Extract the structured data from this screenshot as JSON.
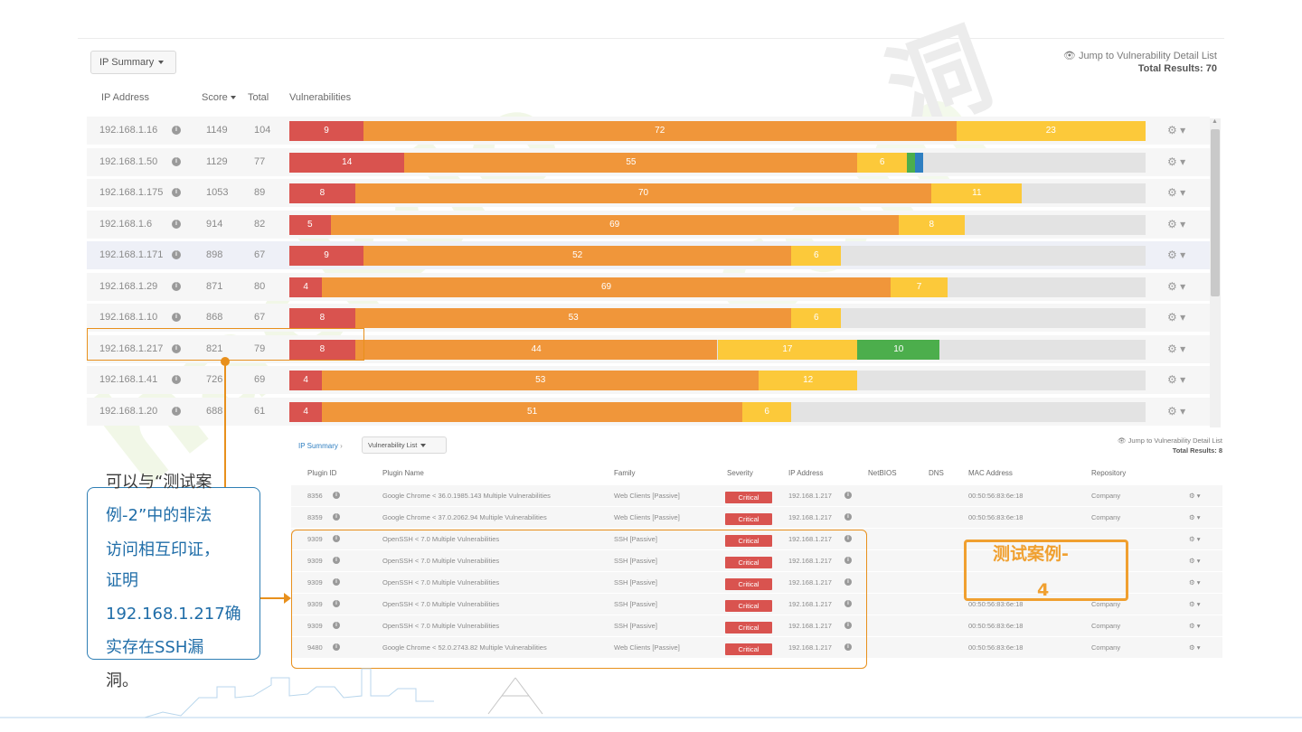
{
  "top": {
    "view_select": "IP Summary",
    "jump_link": "Jump to Vulnerability Detail List",
    "total_results": "Total Results: 70"
  },
  "ip_table": {
    "headers": {
      "ip": "IP Address",
      "score": "Score",
      "total": "Total",
      "vulns": "Vulnerabilities"
    },
    "rows": [
      {
        "ip": "192.168.1.16",
        "score": "1149",
        "total": "104",
        "segments": [
          9,
          72,
          23,
          0,
          0
        ]
      },
      {
        "ip": "192.168.1.50",
        "score": "1129",
        "total": "77",
        "segments": [
          14,
          55,
          6,
          1,
          1
        ]
      },
      {
        "ip": "192.168.1.175",
        "score": "1053",
        "total": "89",
        "segments": [
          8,
          70,
          11,
          0,
          0
        ]
      },
      {
        "ip": "192.168.1.6",
        "score": "914",
        "total": "82",
        "segments": [
          5,
          69,
          8,
          0,
          0
        ]
      },
      {
        "ip": "192.168.1.171",
        "score": "898",
        "total": "67",
        "segments": [
          9,
          52,
          6,
          0,
          0
        ]
      },
      {
        "ip": "192.168.1.29",
        "score": "871",
        "total": "80",
        "segments": [
          4,
          69,
          7,
          0,
          0
        ]
      },
      {
        "ip": "192.168.1.10",
        "score": "868",
        "total": "67",
        "segments": [
          8,
          53,
          6,
          0,
          0
        ]
      },
      {
        "ip": "192.168.1.217",
        "score": "821",
        "total": "79",
        "segments": [
          8,
          44,
          17,
          10,
          0
        ]
      },
      {
        "ip": "192.168.1.41",
        "score": "726",
        "total": "69",
        "segments": [
          4,
          53,
          12,
          0,
          0
        ]
      },
      {
        "ip": "192.168.1.20",
        "score": "688",
        "total": "61",
        "segments": [
          4,
          51,
          6,
          0,
          0
        ]
      }
    ]
  },
  "colors": {
    "critical": "#d9534f",
    "high": "#f0963a",
    "medium": "#fcc93a",
    "low": "#4cae4c",
    "info": "#2f7fc1"
  },
  "detail": {
    "breadcrumb": "IP Summary",
    "sep": "›",
    "view_select": "Vulnerability List",
    "jump_link": "Jump to Vulnerability Detail List",
    "total_results": "Total Results: 8",
    "headers": [
      "Plugin ID",
      "Plugin Name",
      "Family",
      "Severity",
      "IP Address",
      "NetBIOS",
      "DNS",
      "MAC Address",
      "Repository"
    ],
    "rows": [
      {
        "id": "8356",
        "name": "Google Chrome < 36.0.1985.143 Multiple Vulnerabilities",
        "family": "Web Clients [Passive]",
        "severity": "Critical",
        "ip": "192.168.1.217",
        "mac": "00:50:56:83:6e:18",
        "repo": "Company"
      },
      {
        "id": "8359",
        "name": "Google Chrome < 37.0.2062.94 Multiple Vulnerabilities",
        "family": "Web Clients [Passive]",
        "severity": "Critical",
        "ip": "192.168.1.217",
        "mac": "00:50:56:83:6e:18",
        "repo": "Company"
      },
      {
        "id": "9309",
        "name": "OpenSSH < 7.0 Multiple Vulnerabilities",
        "family": "SSH [Passive]",
        "severity": "Critical",
        "ip": "192.168.1.217",
        "mac": "",
        "repo": ""
      },
      {
        "id": "9309",
        "name": "OpenSSH < 7.0 Multiple Vulnerabilities",
        "family": "SSH [Passive]",
        "severity": "Critical",
        "ip": "192.168.1.217",
        "mac": "",
        "repo": ""
      },
      {
        "id": "9309",
        "name": "OpenSSH < 7.0 Multiple Vulnerabilities",
        "family": "SSH [Passive]",
        "severity": "Critical",
        "ip": "192.168.1.217",
        "mac": "",
        "repo": ""
      },
      {
        "id": "9309",
        "name": "OpenSSH < 7.0 Multiple Vulnerabilities",
        "family": "SSH [Passive]",
        "severity": "Critical",
        "ip": "192.168.1.217",
        "mac": "00:50:56:83:6e:18",
        "repo": "Company"
      },
      {
        "id": "9309",
        "name": "OpenSSH < 7.0 Multiple Vulnerabilities",
        "family": "SSH [Passive]",
        "severity": "Critical",
        "ip": "192.168.1.217",
        "mac": "00:50:56:83:6e:18",
        "repo": "Company"
      },
      {
        "id": "9480",
        "name": "Google Chrome < 52.0.2743.82 Multiple Vulnerabilities",
        "family": "Web Clients [Passive]",
        "severity": "Critical",
        "ip": "192.168.1.217",
        "mac": "00:50:56:83:6e:18",
        "repo": "Company"
      }
    ]
  },
  "annotations": {
    "case_label_line1": "测试案例-",
    "case_label_line2": "4",
    "note_lines": [
      "可以与“测试案",
      "例-2”中的非法",
      "访问相互印证，",
      "证明",
      "192.168.1.217确",
      "实存在SSH漏",
      "洞。"
    ]
  },
  "watermark": {
    "text1": "hackdo",
    "text2": "com",
    "text3": "洞"
  }
}
